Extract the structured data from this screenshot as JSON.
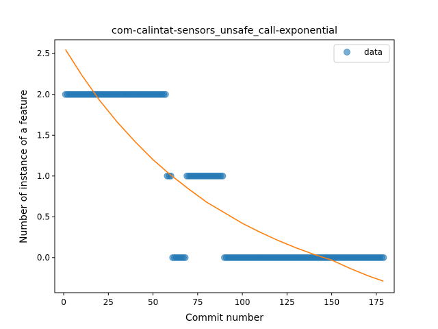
{
  "chart_data": {
    "type": "scatter",
    "title": "com-calintat-sensors_unsafe_call-exponential",
    "xlabel": "Commit number",
    "ylabel": "Number of instance of a feature",
    "xlim": [
      -5,
      185
    ],
    "ylim": [
      -0.43,
      2.67
    ],
    "xticks": [
      0,
      25,
      50,
      75,
      100,
      125,
      150,
      175
    ],
    "yticks": [
      0.0,
      0.5,
      1.0,
      1.5,
      2.0,
      2.5
    ],
    "ytick_labels": [
      "0.0",
      "0.5",
      "1.0",
      "1.5",
      "2.0",
      "2.5"
    ],
    "grid": false,
    "legend": {
      "placement": "top-right",
      "entries": [
        "data"
      ]
    },
    "colors": {
      "points": "#1f77b4",
      "fit": "#ff7f0e"
    },
    "series": [
      {
        "name": "data",
        "kind": "scatter",
        "runs": [
          {
            "x_start": 1,
            "x_end": 57,
            "y": 2
          },
          {
            "x_start": 58,
            "x_end": 60,
            "y": 1
          },
          {
            "x_start": 61,
            "x_end": 68,
            "y": 0
          },
          {
            "x_start": 69,
            "x_end": 89,
            "y": 1
          },
          {
            "x_start": 90,
            "x_end": 179,
            "y": 0
          }
        ]
      },
      {
        "kind": "line",
        "x": [
          1,
          10,
          20,
          30,
          40,
          50,
          60,
          70,
          80,
          90,
          100,
          110,
          120,
          130,
          140,
          150,
          160,
          170,
          179
        ],
        "y": [
          2.55,
          2.24,
          1.93,
          1.66,
          1.42,
          1.2,
          1.01,
          0.84,
          0.68,
          0.55,
          0.42,
          0.31,
          0.21,
          0.12,
          0.04,
          -0.03,
          -0.13,
          -0.22,
          -0.29
        ]
      }
    ]
  }
}
